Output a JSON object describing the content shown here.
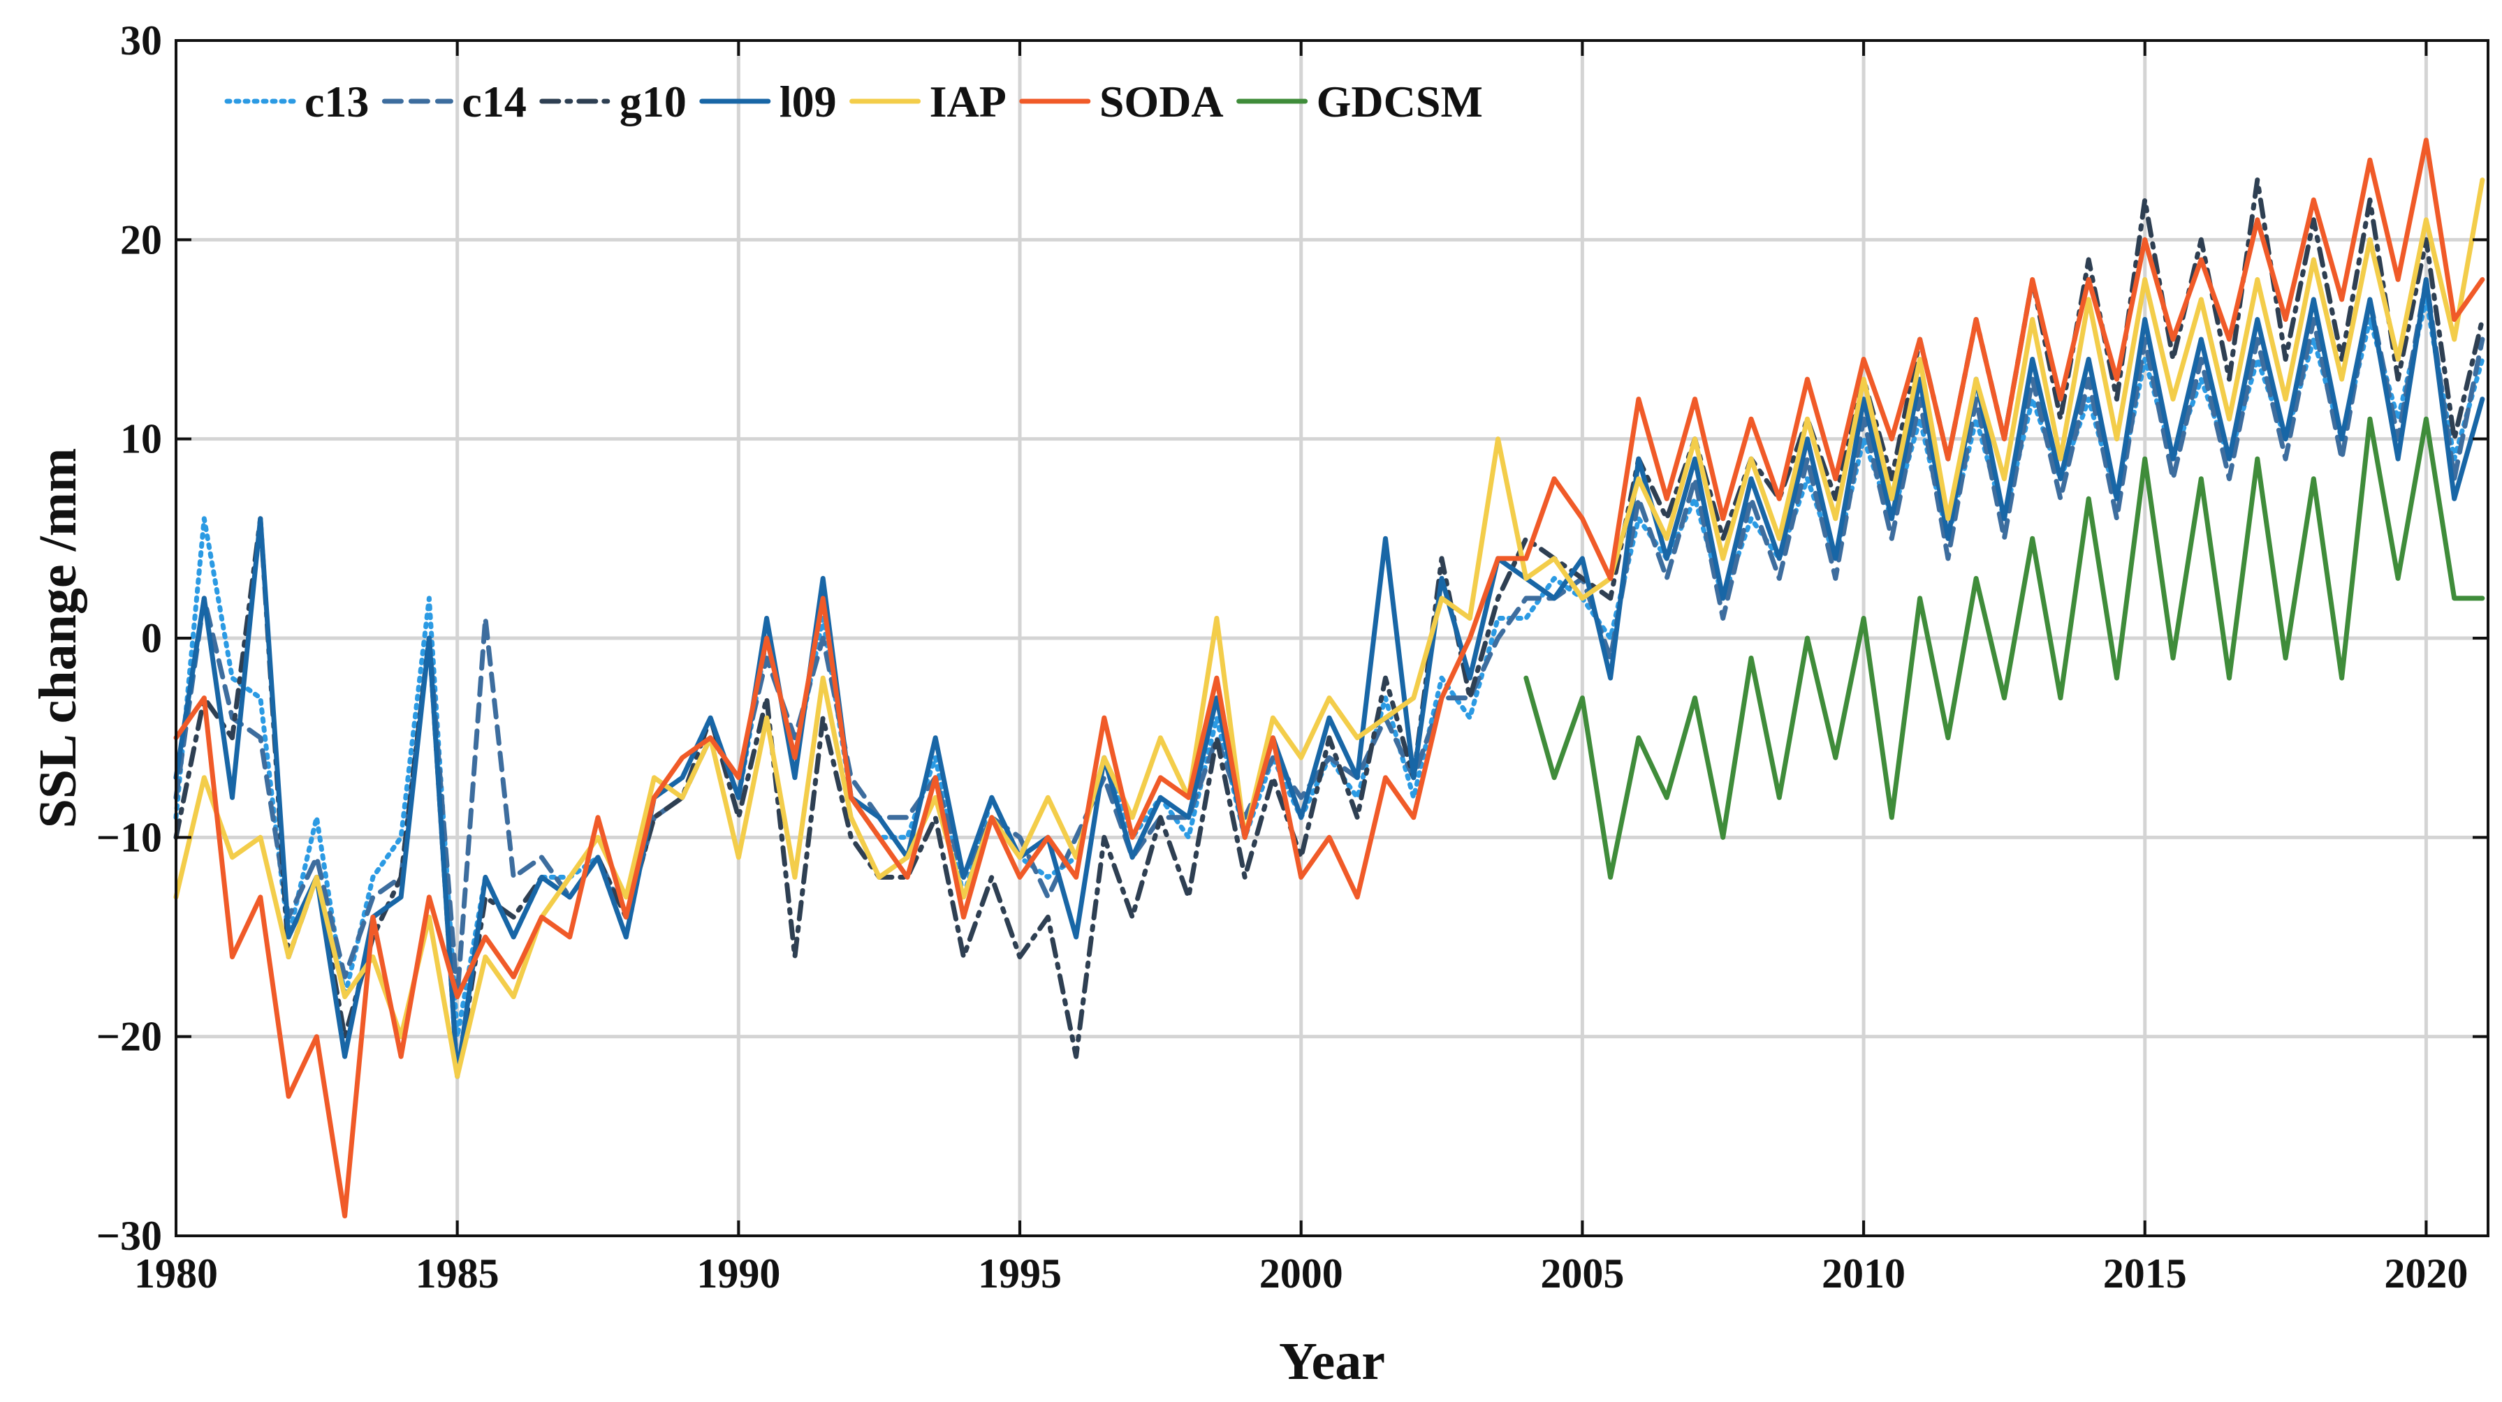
{
  "chart_data": {
    "type": "line",
    "title": "",
    "xlabel": "Year",
    "ylabel": "SSL change /mm",
    "xlim": [
      1980,
      2021.1
    ],
    "ylim": [
      -30,
      30
    ],
    "grid": true,
    "legend_position": "top-left",
    "x_ticks": [
      1980,
      1985,
      1990,
      1995,
      2000,
      2005,
      2010,
      2015,
      2020
    ],
    "x_tick_labels": [
      "1980",
      "1985",
      "1990",
      "1995",
      "2000",
      "2005",
      "2010",
      "2015",
      "2020"
    ],
    "y_ticks": [
      -30,
      -20,
      -10,
      0,
      10,
      20,
      30
    ],
    "y_tick_labels": [
      "−30",
      "−20",
      "−10",
      "0",
      "10",
      "20",
      "30"
    ],
    "x": [
      1980.0,
      1980.5,
      1981.0,
      1981.5,
      1982.0,
      1982.5,
      1983.0,
      1983.5,
      1984.0,
      1984.5,
      1985.0,
      1985.5,
      1986.0,
      1986.5,
      1987.0,
      1987.5,
      1988.0,
      1988.5,
      1989.0,
      1989.5,
      1990.0,
      1990.5,
      1991.0,
      1991.5,
      1992.0,
      1992.5,
      1993.0,
      1993.5,
      1994.0,
      1994.5,
      1995.0,
      1995.5,
      1996.0,
      1996.5,
      1997.0,
      1997.5,
      1998.0,
      1998.5,
      1999.0,
      1999.5,
      2000.0,
      2000.5,
      2001.0,
      2001.5,
      2002.0,
      2002.5,
      2003.0,
      2003.5,
      2004.0,
      2004.5,
      2005.0,
      2005.5,
      2006.0,
      2006.5,
      2007.0,
      2007.5,
      2008.0,
      2008.5,
      2009.0,
      2009.5,
      2010.0,
      2010.5,
      2011.0,
      2011.5,
      2012.0,
      2012.5,
      2013.0,
      2013.5,
      2014.0,
      2014.5,
      2015.0,
      2015.5,
      2016.0,
      2016.5,
      2017.0,
      2017.5,
      2018.0,
      2018.5,
      2019.0,
      2019.5,
      2020.0,
      2020.5,
      2021.0
    ],
    "series": [
      {
        "name": "c13",
        "color": "#2b9ae3",
        "dash": "dotted",
        "values": [
          -9,
          6,
          -2,
          -3,
          -15,
          -9,
          -18,
          -12,
          -10,
          2,
          -20,
          -12,
          -15,
          -12,
          -12,
          -11,
          -15,
          -8,
          -7,
          -4,
          -8,
          0,
          -6,
          1,
          -8,
          -10,
          -10,
          -6,
          -13,
          -8,
          -11,
          -12,
          -11,
          -6,
          -10,
          -8,
          -10,
          -4,
          -10,
          -6,
          -9,
          -6,
          -8,
          -3,
          -8,
          -2,
          -4,
          1,
          1,
          3,
          2,
          0,
          6,
          4,
          7,
          2,
          6,
          4,
          8,
          4,
          10,
          6,
          11,
          5,
          11,
          6,
          12,
          8,
          12,
          7,
          14,
          9,
          13,
          9,
          14,
          10,
          15,
          10,
          16,
          11,
          17,
          9,
          14
        ]
      },
      {
        "name": "c14",
        "color": "#3d6d9e",
        "dash": "dashed",
        "values": [
          -8,
          2,
          -4,
          -5,
          -14,
          -11,
          -17,
          -13,
          -12,
          0,
          -18,
          1,
          -12,
          -11,
          -13,
          -11,
          -14,
          -9,
          -8,
          -5,
          -7,
          -1,
          -5,
          0,
          -7,
          -9,
          -9,
          -7,
          -12,
          -9,
          -10,
          -13,
          -10,
          -7,
          -11,
          -9,
          -9,
          -5,
          -9,
          -6,
          -8,
          -6,
          -7,
          -4,
          -7,
          -3,
          -3,
          0,
          2,
          2,
          3,
          -1,
          7,
          3,
          8,
          1,
          7,
          3,
          9,
          3,
          11,
          5,
          12,
          4,
          12,
          5,
          13,
          7,
          13,
          6,
          15,
          8,
          14,
          8,
          15,
          9,
          16,
          9,
          17,
          10,
          18,
          8,
          15
        ]
      },
      {
        "name": "g10",
        "color": "#2e3f52",
        "dash": "dashdot",
        "values": [
          -10,
          -3,
          -5,
          6,
          -16,
          -12,
          -20,
          -15,
          -12,
          0,
          -22,
          -13,
          -14,
          -12,
          -13,
          -11,
          -14,
          -9,
          -8,
          -4,
          -9,
          -3,
          -16,
          -4,
          -10,
          -12,
          -12,
          -9,
          -16,
          -12,
          -16,
          -14,
          -21,
          -10,
          -14,
          -9,
          -13,
          -5,
          -12,
          -7,
          -11,
          -5,
          -9,
          -2,
          -7,
          4,
          -3,
          2,
          5,
          4,
          3,
          2,
          9,
          6,
          10,
          5,
          9,
          7,
          11,
          7,
          13,
          8,
          15,
          9,
          16,
          10,
          18,
          11,
          19,
          12,
          22,
          14,
          20,
          13,
          23,
          14,
          21,
          14,
          22,
          13,
          20,
          10,
          16
        ]
      },
      {
        "name": "l09",
        "color": "#1866a6",
        "dash": "solid",
        "values": [
          -7,
          2,
          -8,
          6,
          -15,
          -12,
          -21,
          -14,
          -13,
          0,
          -22,
          -12,
          -15,
          -12,
          -13,
          -11,
          -15,
          -8,
          -7,
          -4,
          -8,
          1,
          -7,
          3,
          -8,
          -9,
          -11,
          -5,
          -12,
          -8,
          -11,
          -10,
          -15,
          -6,
          -11,
          -8,
          -9,
          -3,
          -10,
          -5,
          -9,
          -4,
          -7,
          5,
          -7,
          3,
          -2,
          4,
          3,
          2,
          4,
          -2,
          9,
          4,
          9,
          2,
          8,
          4,
          10,
          4,
          12,
          6,
          13,
          5,
          13,
          6,
          14,
          8,
          14,
          7,
          16,
          9,
          15,
          9,
          16,
          10,
          17,
          10,
          17,
          9,
          18,
          7,
          12
        ]
      },
      {
        "name": "IAP",
        "color": "#f3cd4a",
        "dash": "solid",
        "values": [
          -13,
          -7,
          -11,
          -10,
          -16,
          -12,
          -18,
          -16,
          -20,
          -14,
          -22,
          -16,
          -18,
          -14,
          -12,
          -10,
          -13,
          -7,
          -8,
          -5,
          -11,
          -4,
          -12,
          -2,
          -9,
          -12,
          -11,
          -8,
          -13,
          -9,
          -11,
          -8,
          -11,
          -6,
          -9,
          -5,
          -8,
          1,
          -10,
          -4,
          -6,
          -3,
          -5,
          -4,
          -3,
          2,
          1,
          10,
          3,
          4,
          2,
          3,
          8,
          5,
          10,
          4,
          9,
          5,
          11,
          6,
          13,
          7,
          14,
          6,
          13,
          8,
          16,
          9,
          17,
          10,
          18,
          12,
          17,
          11,
          18,
          12,
          19,
          13,
          20,
          14,
          21,
          15,
          23
        ]
      },
      {
        "name": "SODA",
        "color": "#f05a28",
        "dash": "solid",
        "values": [
          -5,
          -3,
          -16,
          -13,
          -23,
          -20,
          -29,
          -14,
          -21,
          -13,
          -18,
          -15,
          -17,
          -14,
          -15,
          -9,
          -14,
          -8,
          -6,
          -5,
          -7,
          0,
          -6,
          2,
          -8,
          -10,
          -12,
          -7,
          -14,
          -9,
          -12,
          -10,
          -12,
          -4,
          -10,
          -7,
          -8,
          -2,
          -10,
          -5,
          -12,
          -10,
          -13,
          -7,
          -9,
          -3,
          0,
          4,
          4,
          8,
          6,
          3,
          12,
          7,
          12,
          6,
          11,
          7,
          13,
          8,
          14,
          10,
          15,
          9,
          16,
          10,
          18,
          12,
          18,
          13,
          20,
          15,
          19,
          15,
          21,
          16,
          22,
          17,
          24,
          18,
          25,
          16,
          18
        ]
      },
      {
        "name": "GDCSM",
        "color": "#3f8c3a",
        "dash": "solid",
        "values": [
          null,
          null,
          null,
          null,
          null,
          null,
          null,
          null,
          null,
          null,
          null,
          null,
          null,
          null,
          null,
          null,
          null,
          null,
          null,
          null,
          null,
          null,
          null,
          null,
          null,
          null,
          null,
          null,
          null,
          null,
          null,
          null,
          null,
          null,
          null,
          null,
          null,
          null,
          null,
          null,
          null,
          null,
          null,
          null,
          null,
          null,
          null,
          null,
          -2,
          -7,
          -3,
          -12,
          -5,
          -8,
          -3,
          -10,
          -1,
          -8,
          0,
          -6,
          1,
          -9,
          2,
          -5,
          3,
          -3,
          5,
          -3,
          7,
          -2,
          9,
          -1,
          8,
          -2,
          9,
          -1,
          8,
          -2,
          11,
          3,
          11,
          2,
          2
        ]
      }
    ]
  }
}
